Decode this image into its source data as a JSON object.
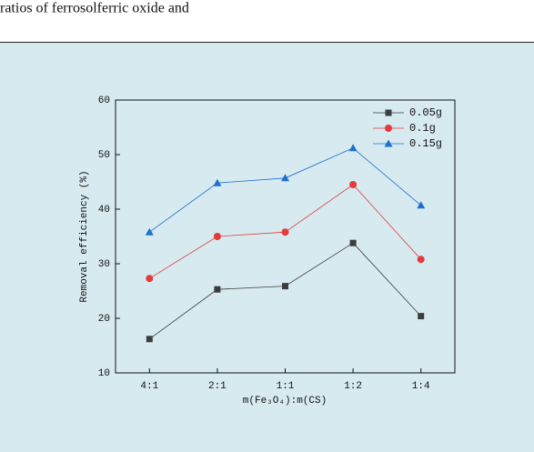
{
  "header_text": "ratios of ferrosolferric oxide and",
  "chart_data": {
    "type": "line",
    "x_label": "m(Fe₃O₄):m(CS)",
    "y_label": "Removal efficiency (%)",
    "categories": [
      "4:1",
      "2:1",
      "1:1",
      "1:2",
      "1:4"
    ],
    "series": [
      {
        "name": "0.05g",
        "color": "#3d3d3d",
        "marker": "square",
        "values": [
          16.2,
          25.3,
          25.9,
          33.8,
          20.4
        ]
      },
      {
        "name": "0.1g",
        "color": "#e23b3b",
        "marker": "circle",
        "values": [
          27.3,
          35.0,
          35.8,
          44.5,
          30.8
        ]
      },
      {
        "name": "0.15g",
        "color": "#1f6fd0",
        "marker": "triangle",
        "values": [
          35.8,
          44.8,
          45.7,
          51.2,
          40.7
        ]
      }
    ],
    "ylim": [
      10,
      60
    ],
    "yticks": [
      10,
      20,
      30,
      40,
      50,
      60
    ],
    "legend": "upper right",
    "grid": false
  }
}
